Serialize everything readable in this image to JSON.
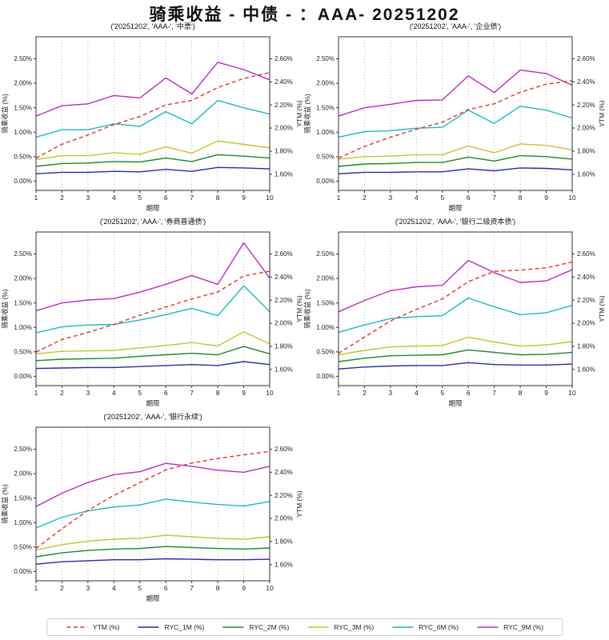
{
  "title": "骑乘收益 - 中债 - ：AAA- 20251202",
  "colors": {
    "ytm_red": "#e8302e",
    "ryc_1m_blue": "#2727bd",
    "ryc_2m_green": "#1a8a22",
    "ryc_3m_yellow": "#c5c52a",
    "ryc_6m_cyan": "#17bcbf",
    "ryc_9m_magenta": "#bb2dbb",
    "grid_gray": "#999999",
    "spine_black": "#333333"
  },
  "legend": {
    "items": [
      {
        "label": "YTM (%)",
        "color": "#e8302e",
        "dashed": true
      },
      {
        "label": "RYC_1M (%)",
        "color": "#2727bd",
        "dashed": false
      },
      {
        "label": "RYC_2M (%)",
        "color": "#1a8a22",
        "dashed": false
      },
      {
        "label": "RYC_3M (%)",
        "color": "#c5c52a",
        "dashed": false
      },
      {
        "label": "RYC_6M (%)",
        "color": "#17bcbf",
        "dashed": false
      },
      {
        "label": "RYC_9M (%)",
        "color": "#bb2dbb",
        "dashed": false
      }
    ]
  },
  "axes": {
    "xlabel": "期限",
    "ylabel_left": "骑乘收益 (%)",
    "ylabel_right": "YTM (%)",
    "x_range": [
      1,
      10
    ],
    "x_ticks": [
      1,
      2,
      3,
      4,
      5,
      6,
      7,
      8,
      9,
      10
    ],
    "left_range": [
      -0.19,
      2.95
    ],
    "left_ticks": [
      0.0,
      0.5,
      1.0,
      1.5,
      2.0,
      2.5
    ],
    "left_tick_labels": [
      "0.00%",
      "0.50%",
      "1.00%",
      "1.50%",
      "2.00%",
      "2.50%"
    ],
    "right_range": [
      1.46,
      2.79
    ],
    "right_ticks": [
      1.6,
      1.8,
      2.0,
      2.2,
      2.4,
      2.6
    ],
    "right_tick_labels": [
      "1.60%",
      "1.80%",
      "2.00%",
      "2.20%",
      "2.40%",
      "2.60%"
    ],
    "grid": "vertical-dotted"
  },
  "chart_data": [
    {
      "type": "line",
      "title": "('20251202', 'AAA-', '中票')",
      "x": [
        1,
        2,
        3,
        4,
        5,
        6,
        7,
        8,
        9,
        10
      ],
      "series": [
        {
          "name": "RYC_1M (%)",
          "axis": "left",
          "dashed": false,
          "color": "#2727bd",
          "values": [
            0.15,
            0.18,
            0.18,
            0.2,
            0.19,
            0.24,
            0.2,
            0.28,
            0.27,
            0.25
          ]
        },
        {
          "name": "RYC_2M (%)",
          "axis": "left",
          "dashed": false,
          "color": "#1a8a22",
          "values": [
            0.3,
            0.36,
            0.37,
            0.4,
            0.39,
            0.47,
            0.4,
            0.54,
            0.51,
            0.47
          ]
        },
        {
          "name": "RYC_3M (%)",
          "axis": "left",
          "dashed": false,
          "color": "#c5c52a",
          "values": [
            0.44,
            0.52,
            0.52,
            0.58,
            0.55,
            0.7,
            0.57,
            0.82,
            0.75,
            0.68
          ]
        },
        {
          "name": "RYC_6M (%)",
          "axis": "left",
          "dashed": false,
          "color": "#17bcbf",
          "values": [
            0.9,
            1.05,
            1.05,
            1.17,
            1.12,
            1.42,
            1.17,
            1.65,
            1.5,
            1.37
          ]
        },
        {
          "name": "RYC_9M (%)",
          "axis": "left",
          "dashed": false,
          "color": "#bb2dbb",
          "values": [
            1.33,
            1.54,
            1.58,
            1.75,
            1.7,
            2.11,
            1.78,
            2.43,
            2.28,
            2.07
          ]
        },
        {
          "name": "YTM (%)",
          "axis": "right",
          "dashed": true,
          "color": "#e8302e",
          "values": [
            1.74,
            1.86,
            1.94,
            2.03,
            2.1,
            2.2,
            2.24,
            2.35,
            2.43,
            2.48
          ]
        }
      ]
    },
    {
      "type": "line",
      "title": "('20251202', 'AAA-', '企业债')",
      "x": [
        1,
        2,
        3,
        4,
        5,
        6,
        7,
        8,
        9,
        10
      ],
      "series": [
        {
          "name": "RYC_1M (%)",
          "axis": "left",
          "dashed": false,
          "color": "#2727bd",
          "values": [
            0.15,
            0.18,
            0.18,
            0.19,
            0.19,
            0.25,
            0.21,
            0.27,
            0.26,
            0.23
          ]
        },
        {
          "name": "RYC_2M (%)",
          "axis": "left",
          "dashed": false,
          "color": "#1a8a22",
          "values": [
            0.3,
            0.35,
            0.36,
            0.38,
            0.38,
            0.49,
            0.41,
            0.52,
            0.5,
            0.45
          ]
        },
        {
          "name": "RYC_3M (%)",
          "axis": "left",
          "dashed": false,
          "color": "#c5c52a",
          "values": [
            0.45,
            0.5,
            0.51,
            0.54,
            0.54,
            0.72,
            0.58,
            0.76,
            0.73,
            0.64
          ]
        },
        {
          "name": "RYC_6M (%)",
          "axis": "left",
          "dashed": false,
          "color": "#17bcbf",
          "values": [
            0.9,
            1.01,
            1.03,
            1.08,
            1.1,
            1.45,
            1.18,
            1.53,
            1.45,
            1.29
          ]
        },
        {
          "name": "RYC_9M (%)",
          "axis": "left",
          "dashed": false,
          "color": "#bb2dbb",
          "values": [
            1.33,
            1.5,
            1.57,
            1.65,
            1.66,
            2.15,
            1.81,
            2.27,
            2.2,
            1.96
          ]
        },
        {
          "name": "YTM (%)",
          "axis": "right",
          "dashed": true,
          "color": "#e8302e",
          "values": [
            1.74,
            1.84,
            1.92,
            1.99,
            2.05,
            2.16,
            2.21,
            2.31,
            2.38,
            2.41
          ]
        }
      ]
    },
    {
      "type": "line",
      "title": "('20251202', 'AAA-', '券商普通债')",
      "x": [
        1,
        2,
        3,
        4,
        5,
        6,
        7,
        8,
        9,
        10
      ],
      "series": [
        {
          "name": "RYC_1M (%)",
          "axis": "left",
          "dashed": false,
          "color": "#2727bd",
          "values": [
            0.16,
            0.17,
            0.18,
            0.18,
            0.2,
            0.22,
            0.24,
            0.22,
            0.3,
            0.24
          ]
        },
        {
          "name": "RYC_2M (%)",
          "axis": "left",
          "dashed": false,
          "color": "#1a8a22",
          "values": [
            0.32,
            0.35,
            0.36,
            0.37,
            0.41,
            0.44,
            0.47,
            0.44,
            0.61,
            0.46
          ]
        },
        {
          "name": "RYC_3M (%)",
          "axis": "left",
          "dashed": false,
          "color": "#c5c52a",
          "values": [
            0.46,
            0.51,
            0.52,
            0.53,
            0.58,
            0.63,
            0.69,
            0.62,
            0.91,
            0.66
          ]
        },
        {
          "name": "RYC_6M (%)",
          "axis": "left",
          "dashed": false,
          "color": "#17bcbf",
          "values": [
            0.89,
            1.01,
            1.05,
            1.06,
            1.15,
            1.26,
            1.39,
            1.24,
            1.85,
            1.32
          ]
        },
        {
          "name": "RYC_9M (%)",
          "axis": "left",
          "dashed": false,
          "color": "#bb2dbb",
          "values": [
            1.34,
            1.5,
            1.56,
            1.59,
            1.72,
            1.88,
            2.06,
            1.88,
            2.73,
            2.01
          ]
        },
        {
          "name": "YTM (%)",
          "axis": "right",
          "dashed": true,
          "color": "#e8302e",
          "values": [
            1.75,
            1.86,
            1.92,
            1.99,
            2.07,
            2.14,
            2.21,
            2.27,
            2.41,
            2.45
          ]
        }
      ]
    },
    {
      "type": "line",
      "title": "('20251202', 'AAA-', '银行二级资本债')",
      "x": [
        1,
        2,
        3,
        4,
        5,
        6,
        7,
        8,
        9,
        10
      ],
      "series": [
        {
          "name": "RYC_1M (%)",
          "axis": "left",
          "dashed": false,
          "color": "#2727bd",
          "values": [
            0.15,
            0.19,
            0.21,
            0.22,
            0.22,
            0.28,
            0.24,
            0.23,
            0.23,
            0.25
          ]
        },
        {
          "name": "RYC_2M (%)",
          "axis": "left",
          "dashed": false,
          "color": "#1a8a22",
          "values": [
            0.3,
            0.37,
            0.42,
            0.43,
            0.44,
            0.54,
            0.49,
            0.44,
            0.45,
            0.49
          ]
        },
        {
          "name": "RYC_3M (%)",
          "axis": "left",
          "dashed": false,
          "color": "#c5c52a",
          "values": [
            0.44,
            0.53,
            0.6,
            0.62,
            0.63,
            0.8,
            0.7,
            0.62,
            0.64,
            0.71
          ]
        },
        {
          "name": "RYC_6M (%)",
          "axis": "left",
          "dashed": false,
          "color": "#17bcbf",
          "values": [
            0.9,
            1.05,
            1.18,
            1.22,
            1.24,
            1.6,
            1.42,
            1.26,
            1.3,
            1.45
          ]
        },
        {
          "name": "RYC_9M (%)",
          "axis": "left",
          "dashed": false,
          "color": "#bb2dbb",
          "values": [
            1.32,
            1.55,
            1.75,
            1.83,
            1.86,
            2.37,
            2.12,
            1.92,
            1.95,
            2.18
          ]
        },
        {
          "name": "YTM (%)",
          "axis": "right",
          "dashed": true,
          "color": "#e8302e",
          "values": [
            1.74,
            1.88,
            2.02,
            2.12,
            2.21,
            2.36,
            2.45,
            2.46,
            2.48,
            2.53
          ]
        }
      ]
    },
    {
      "type": "line",
      "title": "('20251202', 'AAA-', '银行永续')",
      "x": [
        1,
        2,
        3,
        4,
        5,
        6,
        7,
        8,
        9,
        10
      ],
      "series": [
        {
          "name": "RYC_1M (%)",
          "axis": "left",
          "dashed": false,
          "color": "#2727bd",
          "values": [
            0.15,
            0.2,
            0.22,
            0.24,
            0.24,
            0.26,
            0.25,
            0.24,
            0.24,
            0.25
          ]
        },
        {
          "name": "RYC_2M (%)",
          "axis": "left",
          "dashed": false,
          "color": "#1a8a22",
          "values": [
            0.3,
            0.38,
            0.43,
            0.46,
            0.47,
            0.51,
            0.49,
            0.47,
            0.46,
            0.48
          ]
        },
        {
          "name": "RYC_3M (%)",
          "axis": "left",
          "dashed": false,
          "color": "#c5c52a",
          "values": [
            0.44,
            0.55,
            0.62,
            0.66,
            0.68,
            0.74,
            0.71,
            0.68,
            0.66,
            0.71
          ]
        },
        {
          "name": "RYC_6M (%)",
          "axis": "left",
          "dashed": false,
          "color": "#17bcbf",
          "values": [
            0.89,
            1.11,
            1.24,
            1.32,
            1.36,
            1.48,
            1.42,
            1.37,
            1.34,
            1.43
          ]
        },
        {
          "name": "RYC_9M (%)",
          "axis": "left",
          "dashed": false,
          "color": "#bb2dbb",
          "values": [
            1.33,
            1.6,
            1.82,
            1.98,
            2.04,
            2.21,
            2.15,
            2.07,
            2.03,
            2.15
          ]
        },
        {
          "name": "YTM (%)",
          "axis": "right",
          "dashed": true,
          "color": "#e8302e",
          "values": [
            1.74,
            1.91,
            2.07,
            2.2,
            2.31,
            2.42,
            2.48,
            2.52,
            2.55,
            2.58
          ]
        }
      ]
    }
  ]
}
